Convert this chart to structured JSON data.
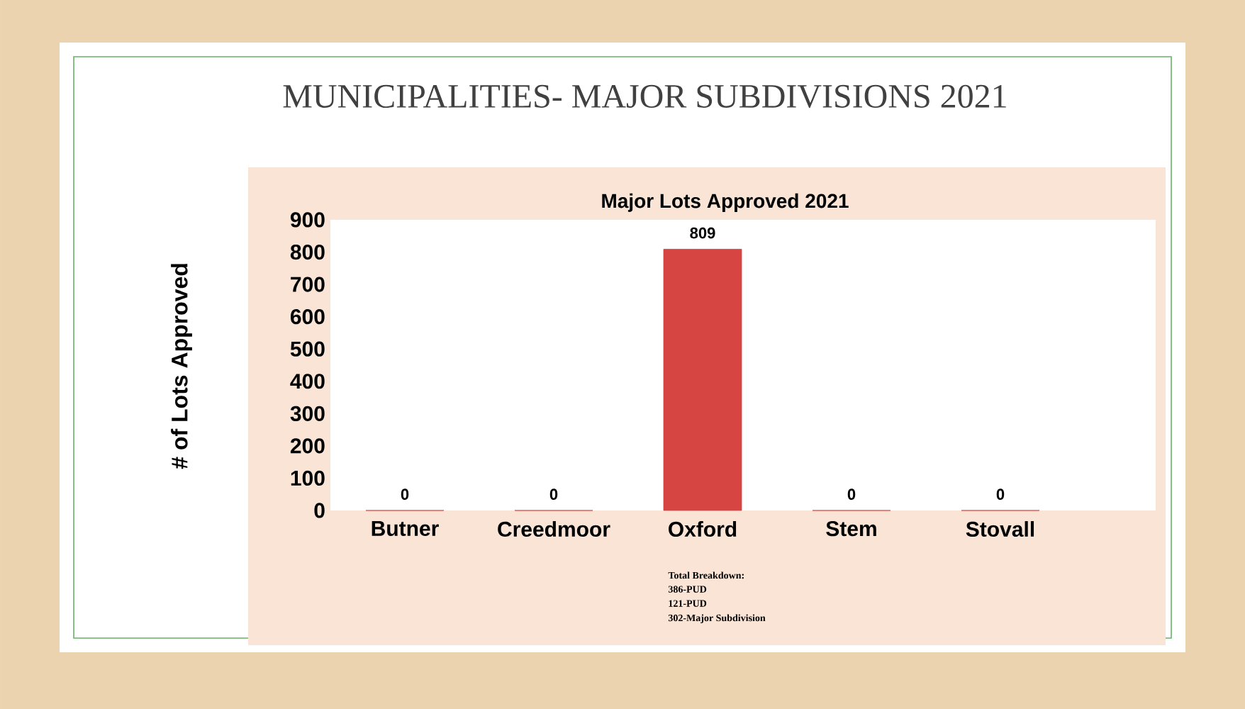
{
  "chart_data": {
    "type": "bar",
    "title": "MUNICIPALITIES- MAJOR SUBDIVISIONS 2021",
    "subtitle": "Major Lots Approved  2021",
    "ylabel": "# of Lots Approved",
    "categories": [
      "Butner",
      "Creedmoor",
      "Oxford",
      "Stem",
      "Stovall"
    ],
    "values": [
      0,
      0,
      809,
      0,
      0
    ],
    "color": "#d64541",
    "ylim": [
      0,
      900
    ],
    "yticks": [
      0,
      100,
      200,
      300,
      400,
      500,
      600,
      700,
      800,
      900
    ],
    "data_labels": true,
    "grid": false,
    "annotations": [
      "Total Breakdown:",
      "386-PUD",
      "121-PUD",
      "302-Major Subdivision"
    ]
  }
}
